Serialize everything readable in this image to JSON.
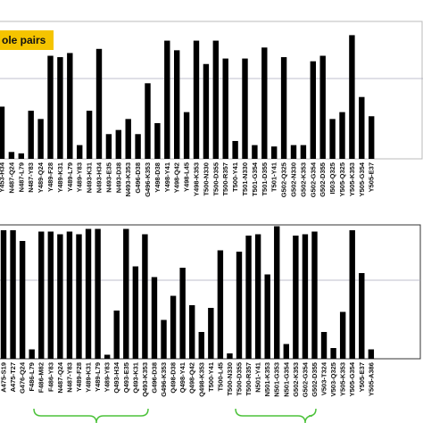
{
  "chart_data": [
    {
      "type": "bar",
      "annotation": "ole pairs",
      "color": "#000000",
      "ylim": [
        0,
        100
      ],
      "categories": [
        "Y453-H34",
        "N487-Q24",
        "N487-L79",
        "N487-Y83",
        "Y489-Q24",
        "Y489-F28",
        "Y489-K31",
        "Y489-L79",
        "Y489-Y83",
        "N493-K31",
        "N493-H34",
        "N493-E35",
        "N493-D38",
        "N493-K353",
        "G496-D38",
        "G496-K353",
        "Y498-D38",
        "Y498-Y41",
        "Y498-Q42",
        "Y498-L45",
        "Y498-K353",
        "T500-N330",
        "T500-D355",
        "T500-R357",
        "T500-Y41",
        "T501-N330",
        "T501-G354",
        "T501-D355",
        "T501-Y41",
        "G502-Q325",
        "G502-N330",
        "G502-K353",
        "G502-G354",
        "G502-D355",
        "I503-Q325",
        "Y505-Q325",
        "Y505-K353",
        "Y505-G354",
        "Y505-E37"
      ],
      "values": [
        38,
        5,
        4,
        35,
        29,
        75,
        74,
        77,
        10,
        35,
        80,
        18,
        21,
        29,
        18,
        55,
        26,
        86,
        79,
        34,
        86,
        69,
        86,
        73,
        13,
        73,
        10,
        81,
        9,
        74,
        10,
        10,
        71,
        75,
        29,
        34,
        90,
        45,
        31
      ]
    },
    {
      "type": "bar",
      "color": "#000000",
      "ylim": [
        0,
        100
      ],
      "categories": [
        "A475-S19",
        "A475-T27",
        "G476-Q24",
        "F486-L79",
        "F486-M82",
        "F486-Y83",
        "N487-Q24",
        "N487-Y83",
        "Y489-F28",
        "Y489-K31",
        "Y489-L79",
        "Y489-Y83",
        "Q493-H34",
        "Q493-E35",
        "Q493-K31",
        "Q493-K353",
        "G496-D38",
        "G496-K353",
        "Q498-D38",
        "Q498-Y41",
        "Q498-Q42",
        "Q498-K353",
        "T500-Y41",
        "T500-L45",
        "T500-N330",
        "T500-D355",
        "T500-R357",
        "N501-Y41",
        "N501-K353",
        "N501-G353",
        "N501-G354",
        "G502-K353",
        "G502-G354",
        "G502-D355",
        "V503-T324",
        "V503-Q325",
        "Y505-K353",
        "Y505-G354",
        "Y505-E37",
        "Y505-A386"
      ],
      "values": [
        96,
        96,
        88,
        7,
        95,
        95,
        93,
        95,
        93,
        97,
        97,
        3,
        36,
        97,
        69,
        93,
        61,
        29,
        47,
        68,
        40,
        20,
        38,
        81,
        4,
        80,
        92,
        93,
        63,
        99,
        11,
        92,
        93,
        95,
        20,
        8,
        35,
        96,
        64,
        7
      ]
    }
  ]
}
